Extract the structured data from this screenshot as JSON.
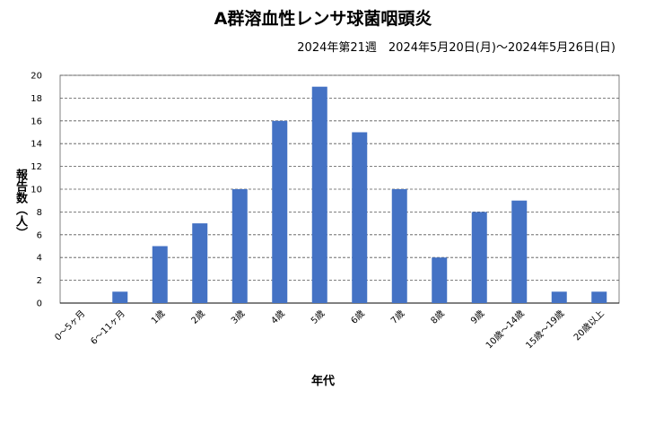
{
  "chart_data": {
    "type": "bar",
    "title": "A群溶血性レンサ球菌咽頭炎",
    "subtitle": "2024年第21週　2024年5月20日(月)〜2024年5月26日(日)",
    "xlabel": "年代",
    "ylabel": "報告数（人）",
    "categories": [
      "0〜5ヶ月",
      "6〜11ヶ月",
      "1歳",
      "2歳",
      "3歳",
      "4歳",
      "5歳",
      "6歳",
      "7歳",
      "8歳",
      "9歳",
      "10歳〜14歳",
      "15歳〜19歳",
      "20歳以上"
    ],
    "values": [
      0,
      1,
      5,
      7,
      10,
      16,
      19,
      15,
      10,
      4,
      8,
      9,
      1,
      1
    ],
    "ylim": [
      0,
      20
    ],
    "yticks": [
      0,
      2,
      4,
      6,
      8,
      10,
      12,
      14,
      16,
      18,
      20
    ],
    "grid": true,
    "bar_color": "#4472C4"
  }
}
